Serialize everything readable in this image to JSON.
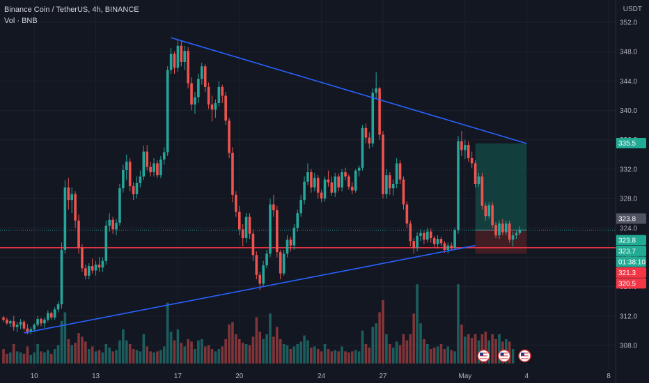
{
  "header": {
    "title": "Binance Coin / TetherUS, 4h, BINANCE",
    "volume_label": "Vol · BNB",
    "currency": "USDT"
  },
  "colors": {
    "background": "#131722",
    "up": "#26a69a",
    "down": "#ef5350",
    "trendline": "#2962ff",
    "support": "#f23645",
    "target_zone": "#134e48",
    "stop_zone": "#4a1e24"
  },
  "chart_data": {
    "type": "candlestick",
    "timeframe": "4h",
    "y_axis_ticks": [
      "352.0",
      "348.0",
      "344.0",
      "340.0",
      "336.0",
      "332.0",
      "328.0",
      "324.0",
      "320.0",
      "316.0",
      "312.0",
      "308.0"
    ],
    "ylim": [
      306.5,
      352.8
    ],
    "x_axis_ticks": [
      {
        "label": "10",
        "bar": 9
      },
      {
        "label": "13",
        "bar": 27
      },
      {
        "label": "17",
        "bar": 51
      },
      {
        "label": "20",
        "bar": 69
      },
      {
        "label": "24",
        "bar": 93
      },
      {
        "label": "27",
        "bar": 111
      },
      {
        "label": "May",
        "bar": 135
      },
      {
        "label": "4",
        "bar": 153
      },
      {
        "label": "8",
        "bar": 177
      }
    ],
    "candles": [
      [
        311.8,
        312.0,
        311.2,
        311.5
      ],
      [
        311.5,
        311.8,
        310.8,
        311.0
      ],
      [
        311.0,
        311.5,
        310.5,
        311.3
      ],
      [
        311.3,
        312.0,
        310.0,
        310.5
      ],
      [
        310.5,
        311.2,
        309.8,
        310.8
      ],
      [
        310.8,
        311.6,
        310.2,
        311.2
      ],
      [
        311.2,
        311.5,
        310.0,
        310.3
      ],
      [
        310.3,
        310.9,
        309.5,
        309.8
      ],
      [
        309.8,
        310.5,
        309.5,
        310.2
      ],
      [
        310.2,
        311.0,
        309.8,
        310.8
      ],
      [
        310.8,
        312.0,
        310.5,
        311.6
      ],
      [
        311.6,
        311.8,
        310.6,
        311.0
      ],
      [
        311.0,
        311.8,
        310.4,
        311.5
      ],
      [
        311.5,
        312.8,
        311.2,
        312.4
      ],
      [
        312.4,
        312.6,
        311.5,
        311.8
      ],
      [
        311.8,
        313.2,
        311.5,
        312.9
      ],
      [
        312.9,
        314.0,
        312.5,
        313.6
      ],
      [
        313.6,
        322.0,
        313.0,
        321.0
      ],
      [
        321.0,
        330.5,
        320.5,
        329.5
      ],
      [
        329.5,
        330.8,
        326.5,
        327.8
      ],
      [
        327.8,
        329.5,
        326.0,
        328.6
      ],
      [
        328.6,
        329.0,
        324.0,
        325.0
      ],
      [
        325.0,
        325.8,
        320.5,
        321.3
      ],
      [
        321.3,
        321.8,
        318.0,
        318.5
      ],
      [
        318.5,
        319.0,
        317.0,
        317.5
      ],
      [
        317.5,
        319.2,
        317.0,
        318.8
      ],
      [
        318.8,
        319.8,
        317.8,
        318.2
      ],
      [
        318.2,
        319.5,
        317.5,
        319.0
      ],
      [
        319.0,
        320.0,
        318.0,
        318.6
      ],
      [
        318.6,
        320.0,
        318.0,
        319.5
      ],
      [
        319.5,
        325.0,
        319.0,
        324.3
      ],
      [
        324.3,
        326.0,
        323.5,
        325.1
      ],
      [
        325.1,
        325.5,
        323.2,
        323.8
      ],
      [
        323.8,
        325.2,
        323.0,
        324.7
      ],
      [
        324.7,
        330.0,
        324.3,
        329.4
      ],
      [
        329.4,
        332.6,
        328.8,
        331.9
      ],
      [
        331.9,
        334.0,
        330.5,
        333.0
      ],
      [
        333.0,
        333.5,
        329.0,
        329.7
      ],
      [
        329.7,
        330.2,
        327.8,
        328.6
      ],
      [
        328.6,
        331.0,
        328.0,
        330.1
      ],
      [
        330.1,
        331.8,
        329.5,
        331.0
      ],
      [
        331.0,
        335.2,
        330.5,
        334.4
      ],
      [
        334.4,
        335.3,
        331.8,
        332.3
      ],
      [
        332.3,
        333.0,
        331.0,
        331.6
      ],
      [
        331.6,
        333.5,
        331.0,
        332.8
      ],
      [
        332.8,
        333.2,
        330.8,
        331.2
      ],
      [
        331.2,
        333.8,
        330.8,
        333.3
      ],
      [
        333.3,
        335.0,
        332.6,
        334.3
      ],
      [
        334.3,
        346.0,
        333.8,
        345.5
      ],
      [
        345.5,
        348.5,
        345.0,
        347.7
      ],
      [
        347.7,
        348.0,
        345.0,
        345.8
      ],
      [
        345.8,
        349.6,
        345.2,
        348.8
      ],
      [
        348.8,
        349.5,
        346.0,
        346.6
      ],
      [
        346.6,
        348.8,
        345.5,
        348.1
      ],
      [
        348.1,
        348.6,
        343.0,
        343.7
      ],
      [
        343.7,
        344.5,
        340.0,
        340.8
      ],
      [
        340.8,
        342.5,
        339.5,
        341.8
      ],
      [
        341.8,
        345.0,
        341.0,
        344.3
      ],
      [
        344.3,
        346.5,
        343.5,
        346.0
      ],
      [
        346.0,
        346.3,
        342.5,
        343.2
      ],
      [
        343.2,
        343.8,
        340.2,
        340.8
      ],
      [
        340.8,
        342.0,
        338.5,
        340.1
      ],
      [
        340.1,
        341.5,
        339.0,
        341.0
      ],
      [
        341.0,
        344.0,
        340.5,
        343.2
      ],
      [
        343.2,
        343.5,
        341.0,
        342.0
      ],
      [
        342.0,
        342.5,
        338.0,
        338.6
      ],
      [
        338.6,
        339.0,
        333.5,
        334.2
      ],
      [
        334.2,
        335.0,
        327.5,
        328.5
      ],
      [
        328.5,
        329.0,
        325.5,
        326.2
      ],
      [
        326.2,
        327.0,
        323.0,
        323.8
      ],
      [
        323.8,
        324.5,
        321.5,
        322.6
      ],
      [
        322.6,
        326.0,
        322.0,
        325.5
      ],
      [
        325.5,
        326.0,
        322.5,
        323.2
      ],
      [
        323.2,
        323.8,
        319.5,
        320.3
      ],
      [
        320.3,
        320.8,
        317.0,
        317.6
      ],
      [
        317.6,
        318.0,
        315.5,
        316.4
      ],
      [
        316.4,
        319.5,
        316.0,
        318.9
      ],
      [
        318.9,
        321.0,
        318.5,
        320.5
      ],
      [
        320.5,
        328.0,
        320.0,
        327.2
      ],
      [
        327.2,
        328.5,
        325.5,
        326.4
      ],
      [
        326.4,
        327.0,
        320.0,
        320.7
      ],
      [
        320.7,
        321.0,
        317.0,
        317.8
      ],
      [
        317.8,
        321.0,
        317.5,
        320.5
      ],
      [
        320.5,
        323.0,
        320.0,
        322.4
      ],
      [
        322.4,
        322.8,
        320.8,
        321.6
      ],
      [
        321.6,
        324.5,
        321.0,
        324.0
      ],
      [
        324.0,
        326.5,
        323.5,
        326.0
      ],
      [
        326.0,
        328.5,
        325.5,
        327.8
      ],
      [
        327.8,
        331.0,
        327.2,
        330.3
      ],
      [
        330.3,
        332.8,
        329.8,
        331.6
      ],
      [
        331.6,
        332.0,
        328.8,
        329.5
      ],
      [
        329.5,
        331.5,
        329.0,
        330.8
      ],
      [
        330.8,
        331.2,
        328.0,
        328.8
      ],
      [
        328.8,
        329.2,
        327.5,
        328.0
      ],
      [
        328.0,
        331.0,
        327.6,
        330.6
      ],
      [
        330.6,
        331.8,
        329.6,
        330.2
      ],
      [
        330.2,
        331.0,
        328.4,
        328.8
      ],
      [
        328.8,
        331.5,
        328.2,
        331.0
      ],
      [
        331.0,
        331.4,
        329.0,
        329.5
      ],
      [
        329.5,
        332.0,
        329.0,
        331.6
      ],
      [
        331.6,
        332.2,
        330.5,
        331.0
      ],
      [
        331.0,
        331.3,
        329.2,
        329.6
      ],
      [
        329.6,
        330.2,
        328.6,
        329.1
      ],
      [
        329.1,
        332.0,
        328.8,
        331.8
      ],
      [
        331.8,
        332.5,
        331.0,
        332.2
      ],
      [
        332.2,
        338.0,
        331.8,
        337.6
      ],
      [
        337.6,
        338.2,
        335.5,
        336.3
      ],
      [
        336.3,
        337.0,
        334.8,
        335.5
      ],
      [
        335.5,
        343.0,
        335.0,
        342.4
      ],
      [
        342.4,
        345.2,
        341.5,
        343.0
      ],
      [
        343.0,
        343.2,
        336.0,
        336.7
      ],
      [
        336.7,
        337.2,
        328.0,
        328.6
      ],
      [
        328.6,
        332.0,
        328.0,
        331.2
      ],
      [
        331.2,
        331.6,
        328.5,
        329.4
      ],
      [
        329.4,
        330.6,
        328.4,
        330.0
      ],
      [
        330.0,
        333.5,
        329.4,
        332.8
      ],
      [
        332.8,
        333.2,
        330.0,
        330.6
      ],
      [
        330.6,
        331.0,
        326.5,
        327.2
      ],
      [
        327.2,
        327.6,
        324.0,
        324.6
      ],
      [
        324.6,
        325.0,
        321.5,
        322.2
      ],
      [
        322.2,
        322.6,
        320.5,
        321.3
      ],
      [
        321.3,
        323.4,
        320.8,
        322.9
      ],
      [
        322.9,
        323.8,
        322.2,
        323.3
      ],
      [
        323.3,
        323.6,
        321.8,
        322.4
      ],
      [
        322.4,
        324.0,
        322.0,
        323.5
      ],
      [
        323.5,
        323.9,
        322.0,
        322.6
      ],
      [
        322.6,
        322.9,
        321.4,
        321.8
      ],
      [
        321.8,
        323.0,
        321.2,
        322.5
      ],
      [
        322.5,
        322.8,
        321.5,
        321.9
      ],
      [
        321.9,
        322.2,
        320.6,
        321.0
      ],
      [
        321.0,
        322.0,
        320.5,
        321.6
      ],
      [
        321.6,
        322.0,
        321.0,
        321.3
      ],
      [
        321.3,
        324.0,
        321.0,
        323.7
      ],
      [
        323.7,
        336.5,
        323.2,
        335.8
      ],
      [
        335.8,
        337.2,
        333.8,
        334.6
      ],
      [
        334.6,
        336.0,
        333.4,
        335.3
      ],
      [
        335.3,
        335.8,
        333.0,
        333.5
      ],
      [
        333.5,
        334.4,
        332.2,
        332.8
      ],
      [
        332.8,
        333.2,
        329.5,
        330.0
      ],
      [
        330.0,
        331.5,
        329.6,
        331.0
      ],
      [
        331.0,
        331.5,
        326.5,
        327.0
      ],
      [
        327.0,
        327.4,
        325.0,
        325.6
      ],
      [
        325.6,
        327.5,
        325.2,
        327.1
      ],
      [
        327.1,
        327.5,
        324.0,
        324.4
      ],
      [
        324.4,
        324.8,
        322.6,
        323.0
      ],
      [
        323.0,
        325.0,
        322.5,
        324.6
      ],
      [
        324.6,
        325.2,
        323.0,
        323.4
      ],
      [
        323.4,
        325.0,
        323.0,
        324.6
      ],
      [
        324.6,
        325.0,
        322.0,
        322.4
      ],
      [
        322.4,
        323.5,
        321.5,
        323.0
      ],
      [
        323.0,
        323.6,
        322.5,
        323.3
      ],
      [
        323.3,
        324.2,
        323.0,
        323.7
      ]
    ],
    "volume": [
      1.2,
      0.8,
      0.9,
      1.6,
      1.0,
      0.9,
      0.8,
      1.4,
      0.7,
      0.9,
      1.6,
      1.0,
      0.9,
      1.1,
      0.8,
      1.2,
      1.5,
      3.5,
      4.2,
      2.0,
      1.5,
      1.7,
      2.5,
      2.2,
      1.8,
      1.2,
      1.4,
      1.0,
      1.1,
      0.9,
      1.6,
      1.3,
      1.0,
      1.1,
      1.9,
      2.8,
      1.9,
      1.6,
      1.2,
      1.1,
      1.0,
      2.4,
      1.4,
      1.0,
      0.9,
      1.0,
      1.1,
      1.4,
      5.0,
      2.6,
      1.9,
      2.8,
      1.7,
      1.4,
      2.0,
      1.8,
      1.2,
      1.9,
      2.0,
      1.4,
      1.5,
      1.2,
      1.0,
      1.2,
      1.4,
      2.0,
      3.2,
      3.4,
      2.4,
      2.0,
      1.7,
      1.6,
      1.5,
      2.2,
      3.8,
      2.6,
      2.0,
      2.4,
      4.1,
      2.2,
      3.0,
      2.0,
      1.6,
      1.5,
      1.2,
      1.4,
      1.6,
      1.8,
      2.3,
      1.9,
      1.3,
      1.4,
      1.2,
      1.0,
      1.6,
      1.2,
      1.0,
      1.1,
      1.0,
      1.4,
      1.0,
      0.9,
      1.0,
      1.1,
      1.0,
      2.7,
      1.6,
      1.3,
      3.0,
      3.3,
      4.2,
      5.2,
      2.4,
      1.6,
      1.3,
      1.8,
      1.5,
      2.4,
      1.9,
      2.4,
      4.1,
      6.5,
      3.3,
      2.0,
      1.6,
      1.2,
      1.3,
      1.4,
      1.6,
      1.2,
      1.4,
      1.1,
      1.0,
      6.5,
      3.2,
      2.2,
      2.4,
      2.1,
      2.4,
      1.9,
      2.4,
      2.6,
      1.9,
      2.4,
      2.0,
      2.4,
      1.8,
      2.0,
      1.8,
      1.2
    ],
    "volume_max": 8.0,
    "trendlines": [
      {
        "from": {
          "bar": 49,
          "price": 349.9
        },
        "to": {
          "bar": 153,
          "price": 335.5
        },
        "color": "#2962ff"
      },
      {
        "from": {
          "bar": 6,
          "price": 309.7
        },
        "to": {
          "bar": 138,
          "price": 321.6
        },
        "color": "#2962ff"
      }
    ],
    "horizontal_lines": [
      {
        "price": 321.3,
        "color": "#f23645"
      }
    ],
    "position": {
      "entry": 323.7,
      "target": 335.5,
      "stop": 320.5,
      "start_bar": 138,
      "end_bar": 153
    },
    "price_labels": [
      {
        "text": "335.5",
        "price": 335.5,
        "bg": "#22ab94",
        "fg": "#ffffff"
      },
      {
        "text": "323.8",
        "price": 323.8,
        "bg": "#505361",
        "fg": "#ffffff",
        "offset": -1
      },
      {
        "text": "323.8",
        "price": 323.8,
        "bg": "#22ab94",
        "fg": "#ffffff",
        "offset": 1
      },
      {
        "text": "323.7",
        "price": 323.7,
        "bg": "#22ab94",
        "fg": "#ffffff",
        "offset": 2
      },
      {
        "text": "01:38:10",
        "price": 323.7,
        "bg": "#22ab94",
        "fg": "#ffffff",
        "offset": 3
      },
      {
        "text": "321.3",
        "price": 321.3,
        "bg": "#f23645",
        "fg": "#ffffff",
        "offset": 4
      },
      {
        "text": "320.5",
        "price": 320.5,
        "bg": "#f23645",
        "fg": "#ffffff",
        "offset": 5
      }
    ],
    "partial_tick": "336.0",
    "last_price": 323.7
  },
  "event_markers": [
    {
      "icon": "us-flag-icon",
      "bar": 138
    },
    {
      "icon": "us-flag-icon",
      "bar": 144
    },
    {
      "icon": "us-flag-icon",
      "bar": 150
    }
  ]
}
